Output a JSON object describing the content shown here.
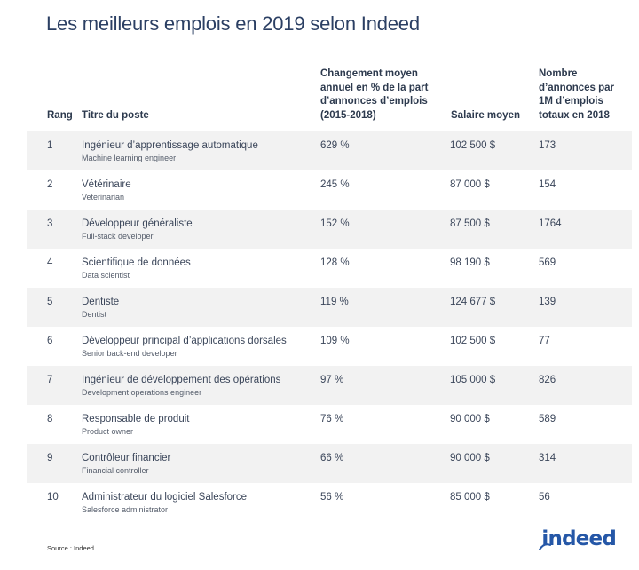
{
  "title": "Les meilleurs emplois en 2019 selon Indeed",
  "columns": {
    "rank": "Rang",
    "title": "Titre du poste",
    "change": [
      "Changement moyen",
      "annuel en % de la part",
      "d’annonces d’emplois",
      "(2015-2018)"
    ],
    "salary": "Salaire moyen",
    "postings": [
      "Nombre",
      "d’annonces par",
      "1M d’emplois",
      "totaux en 2018"
    ]
  },
  "rows": [
    {
      "rank": "1",
      "title_fr": "Ingénieur d’apprentissage automatique",
      "title_en": "Machine learning engineer",
      "change": "629 %",
      "salary": "102 500 $",
      "postings": "173"
    },
    {
      "rank": "2",
      "title_fr": "Vétérinaire",
      "title_en": "Veterinarian",
      "change": "245 %",
      "salary": "87 000 $",
      "postings": "154"
    },
    {
      "rank": "3",
      "title_fr": "Développeur généraliste",
      "title_en": "Full-stack developer",
      "change": "152 %",
      "salary": "87 500 $",
      "postings": "1764"
    },
    {
      "rank": "4",
      "title_fr": "Scientifique de données",
      "title_en": "Data scientist",
      "change": "128 %",
      "salary": "98 190 $",
      "postings": "569"
    },
    {
      "rank": "5",
      "title_fr": "Dentiste",
      "title_en": "Dentist",
      "change": "119 %",
      "salary": "124 677 $",
      "postings": "139"
    },
    {
      "rank": "6",
      "title_fr": "Développeur principal d’applications dorsales",
      "title_en": "Senior back-end developer",
      "change": "109 %",
      "salary": "102 500 $",
      "postings": "77"
    },
    {
      "rank": "7",
      "title_fr": "Ingénieur de développement des opérations",
      "title_en": "Development operations engineer",
      "change": "97 %",
      "salary": "105 000 $",
      "postings": "826"
    },
    {
      "rank": "8",
      "title_fr": "Responsable de produit",
      "title_en": "Product owner",
      "change": "76 %",
      "salary": "90 000 $",
      "postings": "589"
    },
    {
      "rank": "9",
      "title_fr": "Contrôleur financier",
      "title_en": "Financial controller",
      "change": "66 %",
      "salary": "90 000 $",
      "postings": "314"
    },
    {
      "rank": "10",
      "title_fr": "Administrateur du logiciel Salesforce",
      "title_en": "Salesforce administrator",
      "change": "56 %",
      "salary": "85 000 $",
      "postings": "56"
    }
  ],
  "source": "Source : Indeed",
  "logo": {
    "text": "indeed",
    "color": "#2557a7"
  },
  "colors": {
    "title": "#2b3f63",
    "row_shade": "#f2f2f2"
  }
}
